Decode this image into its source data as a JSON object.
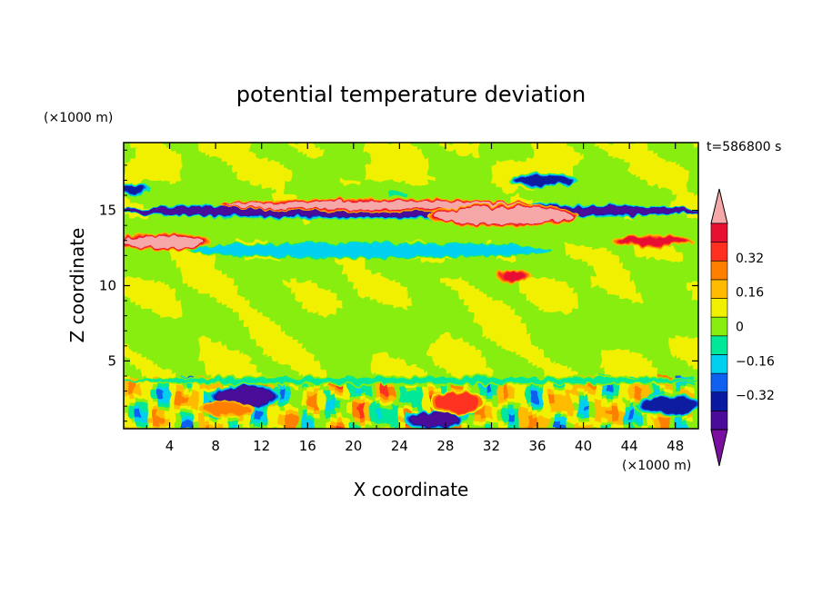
{
  "chart_data": {
    "type": "heatmap",
    "title": "potential temperature deviation",
    "xlabel": "X coordinate",
    "ylabel": "Z coordinate",
    "x_unit": "(×1000 m)",
    "y_unit": "(×1000 m)",
    "time_label": "t=586800 s",
    "xlim": [
      0,
      50
    ],
    "ylim": [
      0.5,
      19.5
    ],
    "x_ticks": [
      4,
      8,
      12,
      16,
      20,
      24,
      28,
      32,
      36,
      40,
      44,
      48
    ],
    "y_ticks": [
      5,
      10,
      15
    ],
    "colorbar": {
      "levels": [
        -0.48,
        -0.4,
        -0.32,
        -0.24,
        -0.16,
        -0.08,
        0,
        0.08,
        0.16,
        0.24,
        0.32,
        0.4,
        0.48
      ],
      "tick_labels": [
        "0.32",
        "0.16",
        "0",
        "−0.16",
        "−0.32"
      ],
      "tick_values": [
        0.32,
        0.16,
        0,
        -0.16,
        -0.32
      ],
      "colors": [
        "#7a0fa0",
        "#4a0a9a",
        "#0a1aa0",
        "#1060f0",
        "#00d0f0",
        "#00e898",
        "#88ee10",
        "#f0f000",
        "#ffbb00",
        "#ff8000",
        "#ff3020",
        "#e81030",
        "#f6a8a8"
      ]
    },
    "features": [
      {
        "x": [
          0,
          50
        ],
        "z": [
          14.6,
          15.3
        ],
        "value": -0.44
      },
      {
        "x": [
          0,
          7
        ],
        "z": [
          12.5,
          13.3
        ],
        "value": 0.45
      },
      {
        "x": [
          9,
          35
        ],
        "z": [
          15.1,
          15.6
        ],
        "value": 0.45
      },
      {
        "x": [
          27,
          39
        ],
        "z": [
          14.1,
          15.2
        ],
        "value": 0.45
      },
      {
        "x": [
          6,
          37
        ],
        "z": [
          11.9,
          12.8
        ],
        "value": -0.2
      },
      {
        "x": [
          34,
          39
        ],
        "z": [
          16.7,
          17.3
        ],
        "value": -0.36
      },
      {
        "x": [
          0,
          2
        ],
        "z": [
          16.1,
          16.6
        ],
        "value": -0.36
      },
      {
        "x": [
          43,
          49
        ],
        "z": [
          12.7,
          13.2
        ],
        "value": 0.32
      },
      {
        "x": [
          33,
          35
        ],
        "z": [
          10.3,
          10.9
        ],
        "value": 0.32
      },
      {
        "x": [
          25,
          29
        ],
        "z": [
          0.6,
          1.6
        ],
        "value": -0.42
      },
      {
        "x": [
          8,
          13
        ],
        "z": [
          2.0,
          3.3
        ],
        "value": -0.42
      },
      {
        "x": [
          45,
          50
        ],
        "z": [
          1.5,
          2.6
        ],
        "value": -0.36
      },
      {
        "x": [
          27,
          31
        ],
        "z": [
          1.6,
          2.9
        ],
        "value": 0.24
      },
      {
        "x": [
          7,
          11
        ],
        "z": [
          1.4,
          2.2
        ],
        "value": 0.16
      },
      {
        "x": [
          0,
          50
        ],
        "z": [
          3.5,
          3.9
        ],
        "value": -0.16
      }
    ]
  }
}
